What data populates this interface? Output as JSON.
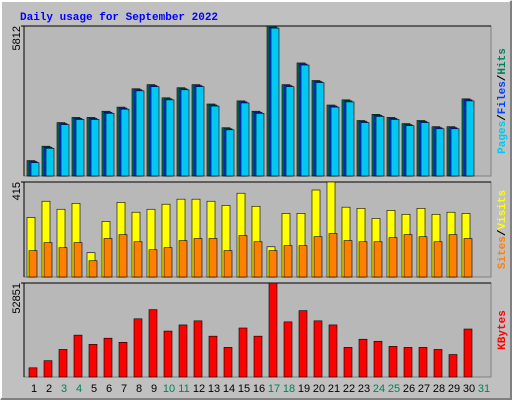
{
  "title": "Daily usage for September 2022",
  "chart_data": [
    {
      "type": "bar",
      "ylim": [
        0,
        5812
      ],
      "yticks": [
        5812
      ],
      "legend_separator": "/",
      "series": [
        {
          "name": "Hits",
          "color": "#00805c",
          "values": [
            597,
            1155,
            2070,
            2270,
            2270,
            2510,
            2670,
            3380,
            3540,
            3030,
            3420,
            3540,
            2790,
            1870,
            2910,
            2510,
            5812,
            3540,
            4380,
            3700,
            2750,
            2950,
            2150,
            2390,
            2270,
            2030,
            2150,
            1910,
            1910,
            2990,
            null
          ]
        },
        {
          "name": "Files",
          "color": "#0040ff",
          "values": [
            557,
            1115,
            2030,
            2230,
            2230,
            2470,
            2630,
            3340,
            3500,
            2990,
            3380,
            3500,
            2750,
            1830,
            2870,
            2470,
            5770,
            3500,
            4340,
            3660,
            2710,
            2910,
            2110,
            2350,
            2230,
            1990,
            2110,
            1870,
            1870,
            2950,
            null
          ]
        },
        {
          "name": "Pages",
          "color": "#00c8f0",
          "values": [
            517,
            1075,
            1990,
            2190,
            2190,
            2430,
            2590,
            3300,
            3460,
            2950,
            3340,
            3460,
            2710,
            1790,
            2830,
            2430,
            5730,
            3460,
            4300,
            3620,
            2670,
            2870,
            2070,
            2310,
            2190,
            1950,
            2070,
            1830,
            1830,
            2910,
            null
          ]
        }
      ]
    },
    {
      "type": "bar",
      "ylim": [
        0,
        415
      ],
      "yticks": [
        415
      ],
      "legend_separator": "/",
      "series": [
        {
          "name": "Visits",
          "color": "#ffff00",
          "values": [
            260,
            331,
            296,
            322,
            106,
            243,
            326,
            283,
            296,
            318,
            340,
            340,
            331,
            313,
            366,
            309,
            132,
            278,
            278,
            380,
            415,
            305,
            300,
            256,
            291,
            274,
            300,
            274,
            283,
            278,
            null
          ]
        },
        {
          "name": "Sites",
          "color": "#ff8000",
          "values": [
            115,
            150,
            128,
            150,
            71,
            168,
            185,
            154,
            119,
            128,
            159,
            168,
            168,
            115,
            181,
            154,
            115,
            137,
            137,
            176,
            190,
            159,
            154,
            154,
            172,
            185,
            176,
            154,
            185,
            168,
            null
          ]
        }
      ]
    },
    {
      "type": "bar",
      "ylim": [
        0,
        52851
      ],
      "yticks": [
        52851
      ],
      "series": [
        {
          "name": "KBytes",
          "color": "#ff0000",
          "values": [
            5166,
            9184,
            15498,
            23534,
            18368,
            21812,
            19516,
            32718,
            37884,
            25830,
            29274,
            31570,
            22960,
            16646,
            27552,
            22960,
            52851,
            31000,
            37310,
            31570,
            29274,
            16646,
            21238,
            20090,
            17220,
            16646,
            16646,
            15498,
            12628,
            26978,
            null
          ]
        }
      ],
      "categories": [
        "1",
        "2",
        "3",
        "4",
        "5",
        "6",
        "7",
        "8",
        "9",
        "10",
        "11",
        "12",
        "13",
        "14",
        "15",
        "16",
        "17",
        "18",
        "19",
        "20",
        "21",
        "22",
        "23",
        "24",
        "25",
        "26",
        "27",
        "28",
        "29",
        "30",
        "31"
      ],
      "label_colors": [
        "#000",
        "#000",
        "#00805c",
        "#00805c",
        "#000",
        "#000",
        "#000",
        "#000",
        "#000",
        "#00805c",
        "#00805c",
        "#000",
        "#000",
        "#000",
        "#000",
        "#000",
        "#00805c",
        "#00805c",
        "#000",
        "#000",
        "#000",
        "#000",
        "#000",
        "#00805c",
        "#00805c",
        "#000",
        "#000",
        "#000",
        "#000",
        "#000",
        "#00805c"
      ]
    }
  ]
}
